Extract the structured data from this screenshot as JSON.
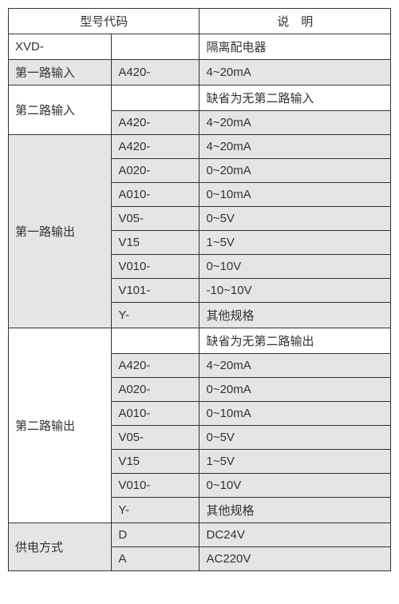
{
  "headers": {
    "modelCode": "型号代码",
    "descPrefix": "说",
    "descSuffix": "明"
  },
  "rows": [
    {
      "group": "XVD-",
      "code": "",
      "desc": "隔离配电器",
      "groupSpan": 1,
      "shadeGroup": false,
      "shadeCells": false
    },
    {
      "group": "第一路输入",
      "code": "A420-",
      "desc": "4~20mA",
      "groupSpan": 1,
      "shadeGroup": true,
      "shadeCells": true
    },
    {
      "group": "第二路输入",
      "code": "",
      "desc": "缺省为无第二路输入",
      "groupSpan": 2,
      "shadeGroup": false,
      "shadeCells": false
    },
    {
      "code": "A420-",
      "desc": "4~20mA",
      "shadeCells": true
    },
    {
      "group": "第一路输出",
      "code": "A420-",
      "desc": "4~20mA",
      "groupSpan": 8,
      "shadeGroup": true,
      "shadeCells": true
    },
    {
      "code": "A020-",
      "desc": "0~20mA",
      "shadeCells": true
    },
    {
      "code": "A010-",
      "desc": "0~10mA",
      "shadeCells": true
    },
    {
      "code": "V05-",
      "desc": "0~5V",
      "shadeCells": true
    },
    {
      "code": "V15",
      "desc": "1~5V",
      "shadeCells": true
    },
    {
      "code": "V010-",
      "desc": "0~10V",
      "shadeCells": true
    },
    {
      "code": "V101-",
      "desc": "-10~10V",
      "shadeCells": true
    },
    {
      "code": "Y-",
      "desc": "其他规格",
      "shadeCells": true
    },
    {
      "group": "第二路输出",
      "code": "",
      "desc": "缺省为无第二路输出",
      "groupSpan": 8,
      "shadeGroup": false,
      "shadeCells": false
    },
    {
      "code": "A420-",
      "desc": "4~20mA",
      "shadeCells": true
    },
    {
      "code": "A020-",
      "desc": "0~20mA",
      "shadeCells": true
    },
    {
      "code": "A010-",
      "desc": "0~10mA",
      "shadeCells": true
    },
    {
      "code": "V05-",
      "desc": "0~5V",
      "shadeCells": true
    },
    {
      "code": "V15",
      "desc": "1~5V",
      "shadeCells": true
    },
    {
      "code": "V010-",
      "desc": "0~10V",
      "shadeCells": true
    },
    {
      "code": "Y-",
      "desc": "其他规格",
      "shadeCells": true
    },
    {
      "group": "供电方式",
      "code": "D",
      "desc": "DC24V",
      "groupSpan": 2,
      "shadeGroup": true,
      "shadeCells": true
    },
    {
      "code": "A",
      "desc": "AC220V",
      "shadeCells": true
    }
  ],
  "colors": {
    "border": "#333333",
    "shade": "#e5e5e5",
    "text": "#333333",
    "background": "#ffffff"
  }
}
